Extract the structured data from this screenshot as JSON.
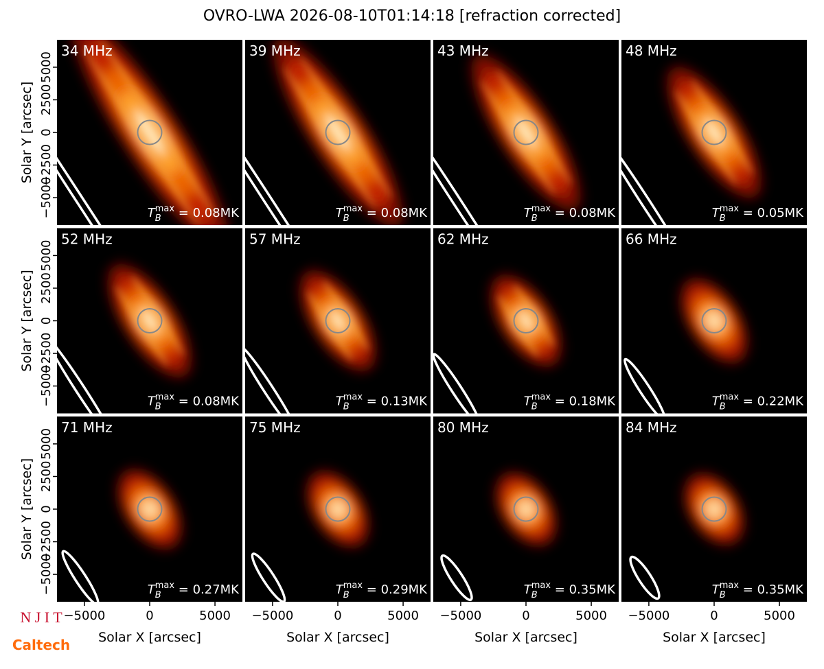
{
  "title": "OVRO-LWA 2026-08-10T01:14:18 [refraction corrected]",
  "axes": {
    "xlabel": "Solar X [arcsec]",
    "ylabel": "Solar Y [arcsec]",
    "xlim": [
      -7100,
      7100
    ],
    "ylim": [
      -7100,
      7100
    ],
    "xticks": [
      {
        "value": -5000,
        "label": "−5000"
      },
      0,
      5000
    ],
    "yticks": [
      {
        "value": -5000,
        "label": "−5000"
      },
      {
        "value": -2500,
        "label": "−2500"
      },
      0,
      2500,
      5000
    ]
  },
  "tb_symbol": {
    "base": "T",
    "sub": "B",
    "sup": "max",
    "eq": " = "
  },
  "logos": [
    "N J I T",
    "Caltech"
  ],
  "chart_data": [
    {
      "type": "image",
      "label": "34 MHz",
      "annotation": "0.08MK"
    },
    {
      "type": "image",
      "label": "39 MHz",
      "annotation": "0.08MK"
    },
    {
      "type": "image",
      "label": "43 MHz",
      "annotation": "0.08MK"
    },
    {
      "type": "image",
      "label": "48 MHz",
      "annotation": "0.05MK"
    },
    {
      "type": "image",
      "label": "52 MHz",
      "annotation": "0.08MK"
    },
    {
      "type": "image",
      "label": "57 MHz",
      "annotation": "0.13MK"
    },
    {
      "type": "image",
      "label": "62 MHz",
      "annotation": "0.18MK"
    },
    {
      "type": "image",
      "label": "66 MHz",
      "annotation": "0.22MK"
    },
    {
      "type": "image",
      "label": "71 MHz",
      "annotation": "0.27MK"
    },
    {
      "type": "image",
      "label": "75 MHz",
      "annotation": "0.29MK"
    },
    {
      "type": "image",
      "label": "80 MHz",
      "annotation": "0.35MK"
    },
    {
      "type": "image",
      "label": "84 MHz",
      "annotation": "0.35MK"
    }
  ]
}
